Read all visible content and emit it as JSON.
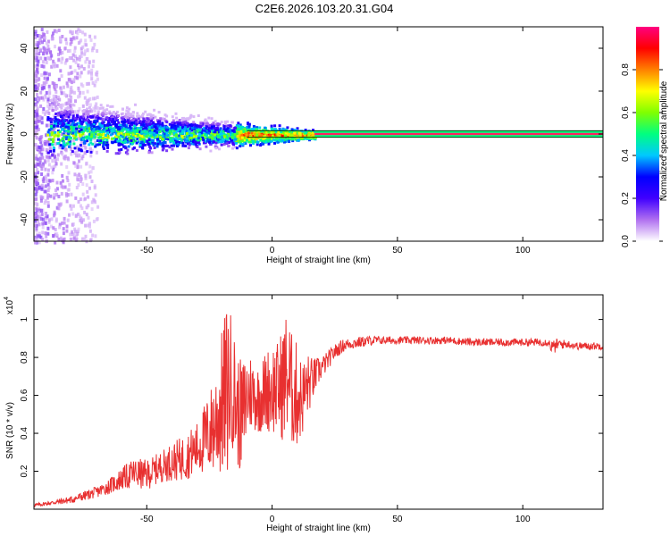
{
  "title": "C2E6.2026.103.20.31.G04",
  "chart_data": [
    {
      "type": "heatmap",
      "xlabel": "Height of straight line (km)",
      "ylabel": "Frequency (Hz)",
      "xlim": [
        -95,
        132
      ],
      "ylim": [
        -50,
        50
      ],
      "xticks": [
        -50,
        0,
        50,
        100
      ],
      "yticks": [
        -40,
        -20,
        0,
        20,
        40
      ],
      "colorbar": {
        "label": "Normalized spectral amplitude",
        "range": [
          0,
          1
        ],
        "ticks": [
          "0.0",
          "0.2",
          "0.4",
          "0.6",
          "0.8"
        ],
        "tick_values": [
          0.0,
          0.2,
          0.4,
          0.6,
          0.8
        ],
        "colors": [
          "#ffffff",
          "#b070f0",
          "#4000ff",
          "#0000ff",
          "#00c8ff",
          "#00ff80",
          "#80ff00",
          "#ffff00",
          "#ff8000",
          "#ff0000",
          "#ff0080"
        ]
      },
      "trace": {
        "line_color": "#004010",
        "band_color": "#00ff80",
        "core_color": "#ff2060",
        "line_offsets_hz": [
          -1.5,
          1.5
        ],
        "band_start_km": 17,
        "band_end_km": 132
      }
    },
    {
      "type": "line",
      "xlabel": "Height of straight line (km)",
      "ylabel": "SNR (10 * v/v)",
      "multiplier_base": "x10",
      "multiplier_exp": "4",
      "xlim": [
        -95,
        132
      ],
      "ylim": [
        0.0,
        1.13
      ],
      "xticks": [
        -50,
        0,
        50,
        100
      ],
      "yticks": [
        0.2,
        0.4,
        0.6,
        0.8,
        1.0
      ],
      "ytick_labels": [
        "0.2",
        "0.4",
        "0.6",
        "0.8",
        "1"
      ],
      "color": "#e83030",
      "x": [
        -95,
        -90,
        -85,
        -80,
        -75,
        -70,
        -65,
        -60,
        -55,
        -50,
        -45,
        -40,
        -35,
        -30,
        -25,
        -22,
        -20,
        -18,
        -16,
        -14,
        -12,
        -10,
        -8,
        -6,
        -4,
        -2,
        0,
        2,
        4,
        6,
        8,
        10,
        12,
        14,
        16,
        18,
        20,
        22,
        25,
        28,
        30,
        35,
        40,
        45,
        50,
        60,
        70,
        80,
        90,
        100,
        110,
        112,
        114,
        118,
        122,
        126,
        132
      ],
      "values": [
        0.02,
        0.03,
        0.04,
        0.05,
        0.07,
        0.09,
        0.12,
        0.16,
        0.19,
        0.18,
        0.22,
        0.25,
        0.27,
        0.32,
        0.4,
        0.48,
        0.55,
        0.62,
        0.68,
        0.52,
        0.48,
        0.6,
        0.62,
        0.58,
        0.6,
        0.63,
        0.64,
        0.63,
        0.66,
        0.72,
        0.62,
        0.6,
        0.58,
        0.65,
        0.68,
        0.72,
        0.75,
        0.78,
        0.83,
        0.86,
        0.87,
        0.88,
        0.89,
        0.89,
        0.89,
        0.89,
        0.89,
        0.88,
        0.88,
        0.88,
        0.88,
        0.85,
        0.87,
        0.87,
        0.86,
        0.86,
        0.86
      ],
      "noise": [
        0.01,
        0.01,
        0.015,
        0.02,
        0.025,
        0.03,
        0.04,
        0.06,
        0.08,
        0.08,
        0.08,
        0.1,
        0.12,
        0.14,
        0.22,
        0.3,
        0.4,
        0.48,
        0.35,
        0.3,
        0.3,
        0.25,
        0.2,
        0.18,
        0.2,
        0.22,
        0.25,
        0.25,
        0.3,
        0.35,
        0.3,
        0.28,
        0.2,
        0.18,
        0.12,
        0.08,
        0.06,
        0.05,
        0.04,
        0.035,
        0.03,
        0.03,
        0.025,
        0.02,
        0.02,
        0.02,
        0.02,
        0.02,
        0.02,
        0.02,
        0.02,
        0.04,
        0.03,
        0.02,
        0.02,
        0.02,
        0.02
      ]
    }
  ]
}
